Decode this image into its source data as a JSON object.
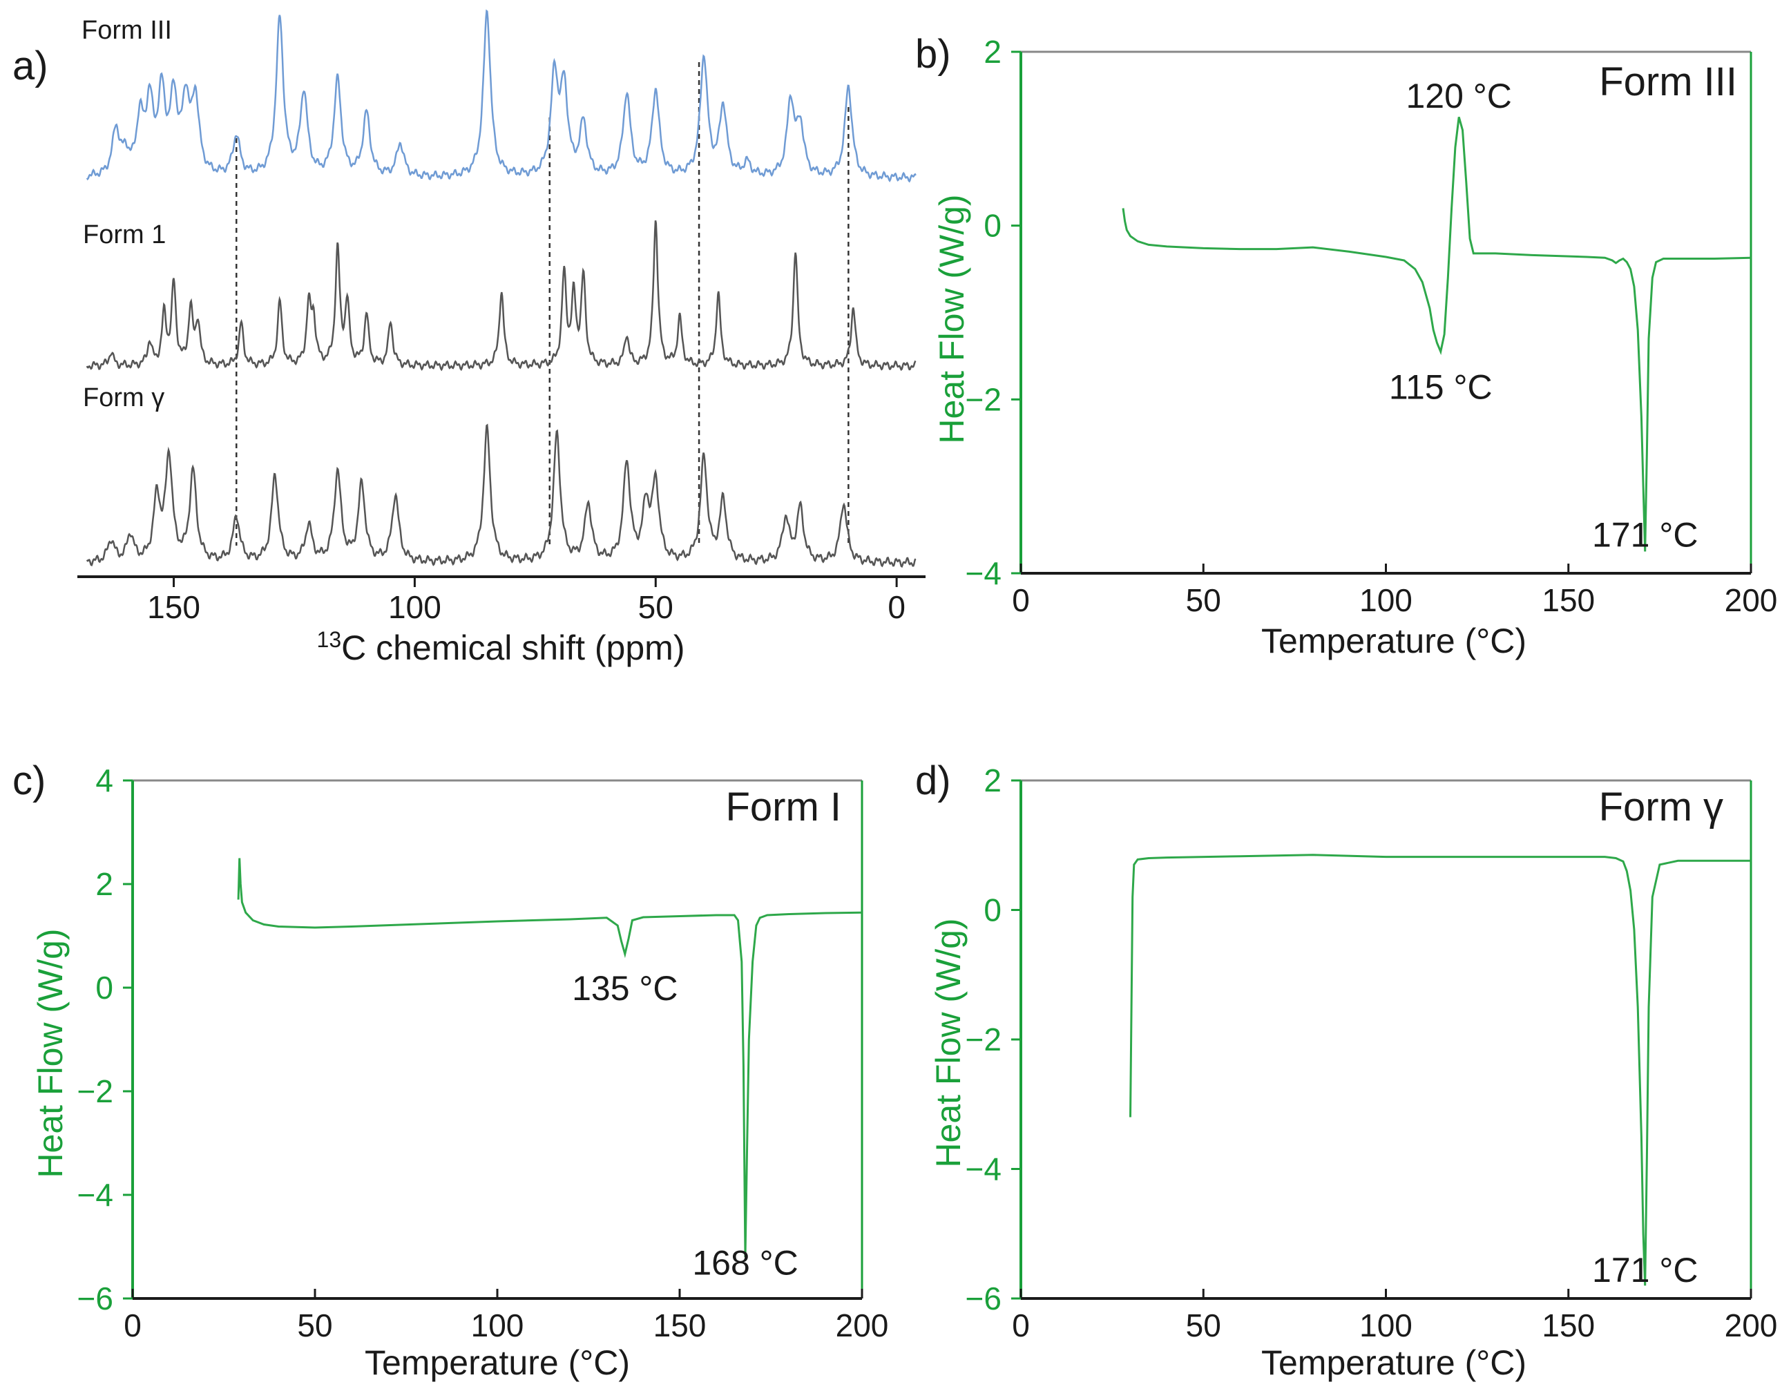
{
  "colors": {
    "dsc_axis": "#1aa03a",
    "dsc_curve": "#2ea84a",
    "nmr_form_iii": "#6f9bd4",
    "nmr_other": "#555555",
    "text": "#1a1a1a"
  },
  "chart_data": [
    {
      "id": "a",
      "panel_label": "a)",
      "type": "line",
      "title": "",
      "xlabel_sup": "13",
      "xlabel_main": "C chemical shift (ppm)",
      "ylabel": "",
      "xlim": [
        170,
        -6
      ],
      "x_ticks": [
        150,
        100,
        50,
        0
      ],
      "x_tick_labels": [
        "150",
        "100",
        "50",
        "0"
      ],
      "dashed_guides_ppm": [
        137,
        72,
        41,
        10
      ],
      "series": [
        {
          "name": "Form III",
          "color_key": "nmr_form_iii",
          "baseline": 0.0,
          "peaks": [
            {
              "ppm": 162,
              "h": 0.28
            },
            {
              "ppm": 160,
              "h": 0.12
            },
            {
              "ppm": 157,
              "h": 0.33
            },
            {
              "ppm": 155,
              "h": 0.42
            },
            {
              "ppm": 152.5,
              "h": 0.48
            },
            {
              "ppm": 150,
              "h": 0.45
            },
            {
              "ppm": 147.5,
              "h": 0.43
            },
            {
              "ppm": 145.5,
              "h": 0.45
            },
            {
              "ppm": 137,
              "h": 0.24
            },
            {
              "ppm": 128,
              "h": 0.95
            },
            {
              "ppm": 123,
              "h": 0.5
            },
            {
              "ppm": 116,
              "h": 0.58
            },
            {
              "ppm": 110,
              "h": 0.38
            },
            {
              "ppm": 103,
              "h": 0.2
            },
            {
              "ppm": 85,
              "h": 1.0
            },
            {
              "ppm": 71,
              "h": 0.6
            },
            {
              "ppm": 69,
              "h": 0.52
            },
            {
              "ppm": 65,
              "h": 0.32
            },
            {
              "ppm": 56,
              "h": 0.5
            },
            {
              "ppm": 50,
              "h": 0.52
            },
            {
              "ppm": 40,
              "h": 0.72
            },
            {
              "ppm": 36,
              "h": 0.42
            },
            {
              "ppm": 31,
              "h": 0.08
            },
            {
              "ppm": 22,
              "h": 0.45
            },
            {
              "ppm": 20,
              "h": 0.3
            },
            {
              "ppm": 10,
              "h": 0.55
            }
          ]
        },
        {
          "name": "Form 1",
          "color_key": "nmr_other",
          "baseline": 0.0,
          "peaks": [
            {
              "ppm": 163,
              "h": 0.08
            },
            {
              "ppm": 155,
              "h": 0.14
            },
            {
              "ppm": 152,
              "h": 0.3
            },
            {
              "ppm": 150,
              "h": 0.48
            },
            {
              "ppm": 146.5,
              "h": 0.33
            },
            {
              "ppm": 145,
              "h": 0.25
            },
            {
              "ppm": 136,
              "h": 0.25
            },
            {
              "ppm": 128,
              "h": 0.38
            },
            {
              "ppm": 122,
              "h": 0.34
            },
            {
              "ppm": 121,
              "h": 0.26
            },
            {
              "ppm": 116,
              "h": 0.68
            },
            {
              "ppm": 114,
              "h": 0.36
            },
            {
              "ppm": 110,
              "h": 0.3
            },
            {
              "ppm": 105,
              "h": 0.26
            },
            {
              "ppm": 82,
              "h": 0.44
            },
            {
              "ppm": 69,
              "h": 0.54
            },
            {
              "ppm": 67,
              "h": 0.4
            },
            {
              "ppm": 65,
              "h": 0.52
            },
            {
              "ppm": 56,
              "h": 0.18
            },
            {
              "ppm": 50,
              "h": 0.86
            },
            {
              "ppm": 45,
              "h": 0.28
            },
            {
              "ppm": 37,
              "h": 0.42
            },
            {
              "ppm": 21,
              "h": 0.68
            },
            {
              "ppm": 9,
              "h": 0.35
            }
          ]
        },
        {
          "name": "Form γ",
          "color_key": "nmr_other",
          "baseline": 0.0,
          "peaks": [
            {
              "ppm": 163,
              "h": 0.12
            },
            {
              "ppm": 159,
              "h": 0.15
            },
            {
              "ppm": 153.5,
              "h": 0.35
            },
            {
              "ppm": 151,
              "h": 0.58
            },
            {
              "ppm": 146,
              "h": 0.5
            },
            {
              "ppm": 137,
              "h": 0.25
            },
            {
              "ppm": 129,
              "h": 0.48
            },
            {
              "ppm": 122,
              "h": 0.2
            },
            {
              "ppm": 116,
              "h": 0.5
            },
            {
              "ppm": 111,
              "h": 0.43
            },
            {
              "ppm": 104,
              "h": 0.37
            },
            {
              "ppm": 85,
              "h": 0.74
            },
            {
              "ppm": 70.5,
              "h": 0.71
            },
            {
              "ppm": 64,
              "h": 0.32
            },
            {
              "ppm": 56,
              "h": 0.55
            },
            {
              "ppm": 52,
              "h": 0.3
            },
            {
              "ppm": 50,
              "h": 0.43
            },
            {
              "ppm": 40,
              "h": 0.58
            },
            {
              "ppm": 36,
              "h": 0.34
            },
            {
              "ppm": 23,
              "h": 0.24
            },
            {
              "ppm": 20,
              "h": 0.3
            },
            {
              "ppm": 11,
              "h": 0.33
            }
          ]
        }
      ]
    },
    {
      "id": "b",
      "panel_label": "b)",
      "type": "line",
      "title": "Form III",
      "xlabel": "Temperature (°C)",
      "ylabel": "Heat Flow (W/g)",
      "xlim": [
        0,
        200
      ],
      "ylim": [
        -4,
        2
      ],
      "x_ticks": [
        0,
        50,
        100,
        150,
        200
      ],
      "x_tick_labels": [
        "0",
        "50",
        "100",
        "150",
        "200"
      ],
      "y_ticks": [
        2,
        0,
        -2,
        -4
      ],
      "y_tick_labels": [
        "2",
        "0",
        "−2",
        "−4"
      ],
      "series": [
        {
          "name": "Form III",
          "x": [
            28,
            28.5,
            29,
            30,
            32,
            35,
            40,
            50,
            60,
            70,
            80,
            90,
            100,
            105,
            108,
            110,
            112,
            113,
            114,
            115,
            116,
            117,
            118,
            119,
            120,
            121,
            122,
            123,
            124,
            126,
            130,
            140,
            155,
            160,
            162,
            163,
            164,
            165,
            166,
            167,
            168,
            169,
            170,
            170.5,
            171,
            171.5,
            172,
            173,
            174,
            176,
            180,
            190,
            200
          ],
          "y": [
            0.2,
            0.05,
            -0.05,
            -0.12,
            -0.18,
            -0.22,
            -0.24,
            -0.26,
            -0.27,
            -0.27,
            -0.25,
            -0.3,
            -0.36,
            -0.4,
            -0.5,
            -0.65,
            -0.95,
            -1.2,
            -1.35,
            -1.45,
            -1.25,
            -0.6,
            0.2,
            0.9,
            1.25,
            1.1,
            0.5,
            -0.15,
            -0.32,
            -0.32,
            -0.32,
            -0.34,
            -0.36,
            -0.37,
            -0.4,
            -0.43,
            -0.4,
            -0.38,
            -0.42,
            -0.5,
            -0.7,
            -1.2,
            -2.2,
            -3.0,
            -3.75,
            -2.6,
            -1.3,
            -0.6,
            -0.42,
            -0.38,
            -0.38,
            -0.38,
            -0.37
          ]
        }
      ],
      "annotations": [
        {
          "text": "120 °C",
          "x": 120,
          "y": 1.5
        },
        {
          "text": "115 °C",
          "x": 115,
          "y": -1.85
        },
        {
          "text": "171 °C",
          "x": 171,
          "y": -3.55
        }
      ]
    },
    {
      "id": "c",
      "panel_label": "c)",
      "type": "line",
      "title": "Form I",
      "xlabel": "Temperature (°C)",
      "ylabel": "Heat Flow (W/g)",
      "xlim": [
        0,
        200
      ],
      "ylim": [
        -6,
        4
      ],
      "x_ticks": [
        0,
        50,
        100,
        150,
        200
      ],
      "x_tick_labels": [
        "0",
        "50",
        "100",
        "150",
        "200"
      ],
      "y_ticks": [
        4,
        2,
        0,
        -2,
        -4,
        -6
      ],
      "y_tick_labels": [
        "4",
        "2",
        "0",
        "−2",
        "−4",
        "−6"
      ],
      "series": [
        {
          "name": "Form I",
          "x": [
            29,
            29.3,
            29.6,
            30,
            31,
            33,
            36,
            40,
            50,
            60,
            80,
            100,
            120,
            130,
            133,
            134,
            135,
            136,
            137,
            140,
            150,
            160,
            165,
            166,
            167,
            167.5,
            168,
            168.5,
            169,
            170,
            171,
            172,
            174,
            180,
            190,
            200
          ],
          "y": [
            1.7,
            2.5,
            2.0,
            1.65,
            1.45,
            1.3,
            1.22,
            1.18,
            1.16,
            1.18,
            1.23,
            1.28,
            1.32,
            1.35,
            1.2,
            0.9,
            0.65,
            0.95,
            1.3,
            1.36,
            1.38,
            1.4,
            1.4,
            1.3,
            0.5,
            -1.5,
            -5.2,
            -3.0,
            -1.0,
            0.5,
            1.2,
            1.35,
            1.4,
            1.42,
            1.44,
            1.45
          ]
        }
      ],
      "annotations": [
        {
          "text": "135 °C",
          "x": 135,
          "y": 0.0
        },
        {
          "text": "168 °C",
          "x": 168,
          "y": -5.3
        }
      ]
    },
    {
      "id": "d",
      "panel_label": "d)",
      "type": "line",
      "title": "Form γ",
      "xlabel": "Temperature (°C)",
      "ylabel": "Heat Flow (W/g)",
      "xlim": [
        0,
        200
      ],
      "ylim": [
        -6,
        2
      ],
      "x_ticks": [
        0,
        50,
        100,
        150,
        200
      ],
      "x_tick_labels": [
        "0",
        "50",
        "100",
        "150",
        "200"
      ],
      "y_ticks": [
        2,
        0,
        -2,
        -4,
        -6
      ],
      "y_tick_labels": [
        "2",
        "0",
        "−2",
        "−4",
        "−6"
      ],
      "series": [
        {
          "name": "Form γ",
          "x": [
            30,
            30.3,
            30.6,
            31,
            32,
            35,
            40,
            60,
            80,
            100,
            120,
            140,
            155,
            160,
            163,
            165,
            166,
            167,
            168,
            169,
            170,
            170.5,
            171,
            171.5,
            172,
            173,
            175,
            180,
            190,
            200
          ],
          "y": [
            -3.2,
            -1.5,
            0.2,
            0.7,
            0.78,
            0.8,
            0.81,
            0.83,
            0.85,
            0.82,
            0.82,
            0.82,
            0.82,
            0.82,
            0.8,
            0.75,
            0.6,
            0.3,
            -0.3,
            -1.5,
            -3.5,
            -5.0,
            -5.8,
            -3.8,
            -1.5,
            0.2,
            0.7,
            0.76,
            0.76,
            0.76
          ]
        }
      ],
      "annotations": [
        {
          "text": "171 °C",
          "x": 171,
          "y": -5.55
        }
      ]
    }
  ]
}
